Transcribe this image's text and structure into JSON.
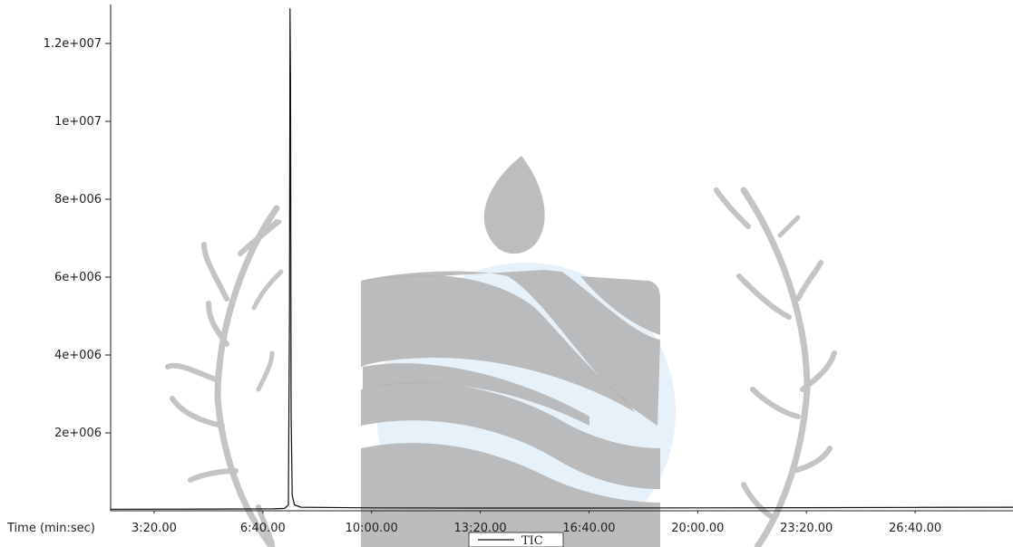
{
  "chart_data": {
    "type": "line",
    "title": "",
    "xlabel": "Time (min:sec)",
    "ylabel": "",
    "x_unit": "seconds",
    "xlim": [
      120,
      1780
    ],
    "ylim": [
      0,
      13000000
    ],
    "x_ticks": [
      {
        "value": 200,
        "label": "3:20.00"
      },
      {
        "value": 400,
        "label": "6:40.00"
      },
      {
        "value": 600,
        "label": "10:00.00"
      },
      {
        "value": 800,
        "label": "13:20.00"
      },
      {
        "value": 1000,
        "label": "16:40.00"
      },
      {
        "value": 1200,
        "label": "20:00.00"
      },
      {
        "value": 1400,
        "label": "23:20.00"
      },
      {
        "value": 1600,
        "label": "26:40.00"
      }
    ],
    "y_ticks": [
      {
        "value": 2000000,
        "label": "2e+006"
      },
      {
        "value": 4000000,
        "label": "4e+006"
      },
      {
        "value": 6000000,
        "label": "6e+006"
      },
      {
        "value": 8000000,
        "label": "8e+006"
      },
      {
        "value": 10000000,
        "label": "1e+007"
      },
      {
        "value": 12000000,
        "label": "1.2e+007"
      }
    ],
    "grid": false,
    "legend": {
      "position": "bottom-center",
      "entries": [
        "TIC"
      ]
    },
    "series": [
      {
        "name": "TIC",
        "color": "#111111",
        "x": [
          120,
          300,
          420,
          440,
          447,
          449,
          450,
          451,
          452,
          454,
          458,
          470,
          600,
          800,
          1000,
          1200,
          1400,
          1600,
          1780
        ],
        "y": [
          40000,
          45000,
          50000,
          60000,
          150000,
          5000000,
          12900000,
          11000000,
          2500000,
          400000,
          150000,
          90000,
          75000,
          70000,
          70000,
          75000,
          80000,
          85000,
          90000
        ]
      }
    ]
  },
  "watermark": {
    "color": "#bdbdbd",
    "accent": "#c7dff2"
  }
}
